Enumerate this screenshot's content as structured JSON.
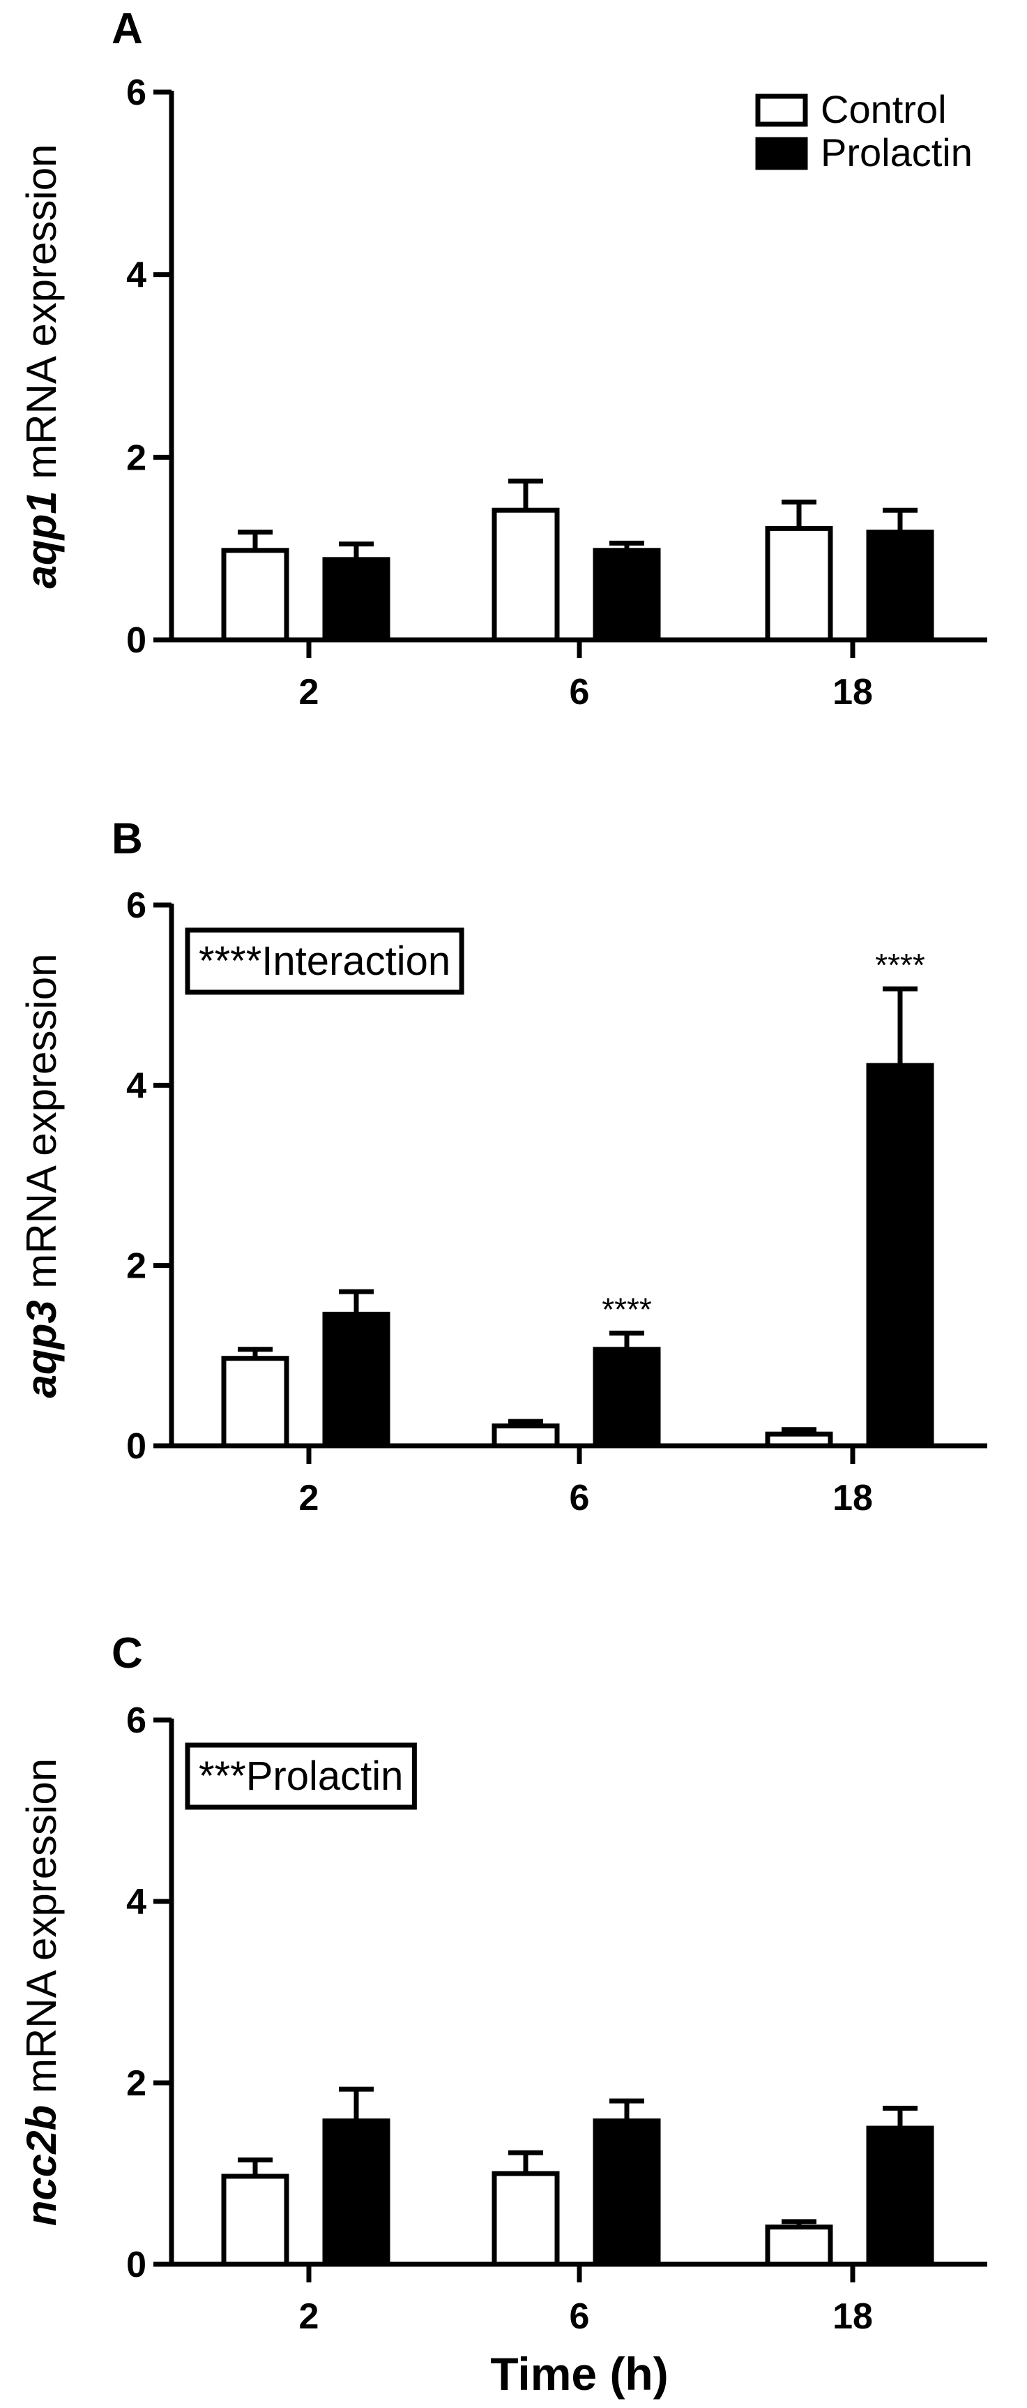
{
  "chart_data": [
    {
      "type": "bar",
      "panel_label": "A",
      "categories": [
        "2",
        "6",
        "18"
      ],
      "ylabel_italic": "aqp1",
      "ylabel_rest": " mRNA expression",
      "xlabel": "",
      "ylim": [
        0,
        6
      ],
      "yticks": [
        "0",
        "2",
        "4",
        "6"
      ],
      "annotation": "",
      "legend": {
        "placement": "top-right",
        "entries": [
          "Control",
          "Prolactin"
        ]
      },
      "series": [
        {
          "name": "Control",
          "color": "#ffffff",
          "values": [
            0.98,
            1.42,
            1.22
          ],
          "errors": [
            0.2,
            0.32,
            0.29
          ],
          "labels": [
            "",
            "",
            ""
          ]
        },
        {
          "name": "Prolactin",
          "color": "#000000",
          "values": [
            0.88,
            0.98,
            1.18
          ],
          "errors": [
            0.17,
            0.08,
            0.24
          ],
          "labels": [
            "",
            "",
            ""
          ]
        }
      ]
    },
    {
      "type": "bar",
      "panel_label": "B",
      "categories": [
        "2",
        "6",
        "18"
      ],
      "ylabel_italic": "aqp3",
      "ylabel_rest": " mRNA expression",
      "xlabel": "",
      "ylim": [
        0,
        6
      ],
      "yticks": [
        "0",
        "2",
        "4",
        "6"
      ],
      "annotation": "****Interaction",
      "series": [
        {
          "name": "Control",
          "color": "#ffffff",
          "values": [
            0.97,
            0.22,
            0.13
          ],
          "errors": [
            0.1,
            0.05,
            0.05
          ],
          "labels": [
            "",
            "",
            ""
          ]
        },
        {
          "name": "Prolactin",
          "color": "#000000",
          "values": [
            1.46,
            1.07,
            4.22
          ],
          "errors": [
            0.25,
            0.18,
            0.85
          ],
          "labels": [
            "",
            "****",
            "****"
          ]
        }
      ]
    },
    {
      "type": "bar",
      "panel_label": "C",
      "categories": [
        "2",
        "6",
        "18"
      ],
      "ylabel_italic": "ncc2b",
      "ylabel_rest": " mRNA expression",
      "xlabel": "Time (h)",
      "ylim": [
        0,
        6
      ],
      "yticks": [
        "0",
        "2",
        "4",
        "6"
      ],
      "annotation": "***Prolactin",
      "series": [
        {
          "name": "Control",
          "color": "#ffffff",
          "values": [
            0.97,
            1.0,
            0.41
          ],
          "errors": [
            0.18,
            0.23,
            0.06
          ],
          "labels": [
            "",
            "",
            ""
          ]
        },
        {
          "name": "Prolactin",
          "color": "#000000",
          "values": [
            1.58,
            1.58,
            1.5
          ],
          "errors": [
            0.35,
            0.22,
            0.22
          ],
          "labels": [
            "",
            "",
            ""
          ]
        }
      ]
    }
  ]
}
